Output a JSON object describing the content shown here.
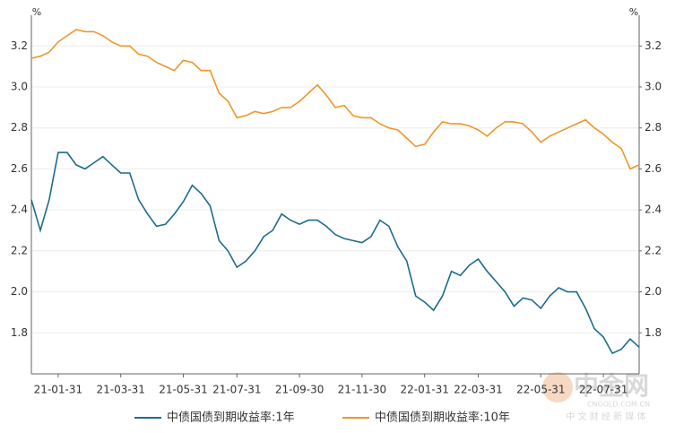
{
  "chart_data": {
    "type": "line",
    "y_unit": "%",
    "y2_unit": "%",
    "categories": [
      null,
      null,
      null,
      "21-01-31",
      null,
      null,
      null,
      null,
      null,
      null,
      "21-03-31",
      null,
      null,
      null,
      null,
      null,
      null,
      "21-05-31",
      null,
      null,
      null,
      null,
      null,
      "21-07-31",
      null,
      null,
      null,
      null,
      null,
      null,
      "21-09-30",
      null,
      null,
      null,
      null,
      null,
      null,
      "21-11-30",
      null,
      null,
      null,
      null,
      null,
      null,
      "22-01-31",
      null,
      null,
      null,
      null,
      null,
      "22-03-31",
      null,
      null,
      null,
      null,
      null,
      null,
      "22-05-31",
      null,
      null,
      null,
      null,
      null,
      null,
      "22-07-31",
      null,
      null,
      null,
      null
    ],
    "series": [
      {
        "name": "中债国债到期收益率:1年",
        "color": "#1d6b8c",
        "values": [
          2.45,
          2.3,
          2.45,
          2.68,
          2.68,
          2.62,
          2.6,
          2.63,
          2.66,
          2.62,
          2.58,
          2.58,
          2.45,
          2.38,
          2.32,
          2.33,
          2.38,
          2.44,
          2.52,
          2.48,
          2.42,
          2.25,
          2.2,
          2.12,
          2.15,
          2.2,
          2.27,
          2.3,
          2.38,
          2.35,
          2.33,
          2.35,
          2.35,
          2.32,
          2.28,
          2.26,
          2.25,
          2.24,
          2.27,
          2.35,
          2.32,
          2.22,
          2.15,
          1.98,
          1.95,
          1.91,
          1.98,
          2.1,
          2.08,
          2.13,
          2.16,
          2.1,
          2.05,
          2.0,
          1.93,
          1.97,
          1.96,
          1.92,
          1.98,
          2.02,
          2.0,
          2.0,
          1.92,
          1.82,
          1.78,
          1.7,
          1.72,
          1.77,
          1.73
        ]
      },
      {
        "name": "中债国债到期收益率:10年",
        "color": "#f0962a",
        "axis": "y2",
        "values": [
          3.14,
          3.15,
          3.17,
          3.22,
          3.25,
          3.28,
          3.27,
          3.27,
          3.25,
          3.22,
          3.2,
          3.2,
          3.16,
          3.15,
          3.12,
          3.1,
          3.08,
          3.13,
          3.12,
          3.08,
          3.08,
          2.97,
          2.93,
          2.85,
          2.86,
          2.88,
          2.87,
          2.88,
          2.9,
          2.9,
          2.93,
          2.97,
          3.01,
          2.96,
          2.9,
          2.91,
          2.86,
          2.85,
          2.85,
          2.82,
          2.8,
          2.79,
          2.75,
          2.71,
          2.72,
          2.78,
          2.83,
          2.82,
          2.82,
          2.81,
          2.79,
          2.76,
          2.8,
          2.83,
          2.83,
          2.82,
          2.78,
          2.73,
          2.76,
          2.78,
          2.8,
          2.82,
          2.84,
          2.8,
          2.77,
          2.73,
          2.7,
          2.6,
          2.62
        ]
      }
    ],
    "ylim": [
      1.6,
      3.35
    ],
    "yticks": [
      1.8,
      {
        "value": 2,
        "label": "2.0"
      },
      2.2,
      2.4,
      2.6,
      2.8,
      {
        "value": 3,
        "label": "3.0"
      },
      3.2
    ],
    "y2lim": [
      1.6,
      3.35
    ],
    "y2ticks": [
      1.8,
      {
        "value": 2,
        "label": "2.0"
      },
      2.2,
      2.4,
      2.6,
      2.8,
      {
        "value": 3,
        "label": "3.0"
      },
      3.2
    ],
    "grid": true,
    "legend": "bottom",
    "watermark": {
      "logo": "中金网",
      "site": "CNGOLD.COM.CN",
      "slogan": "中 文 财 经 新 媒 体"
    }
  }
}
